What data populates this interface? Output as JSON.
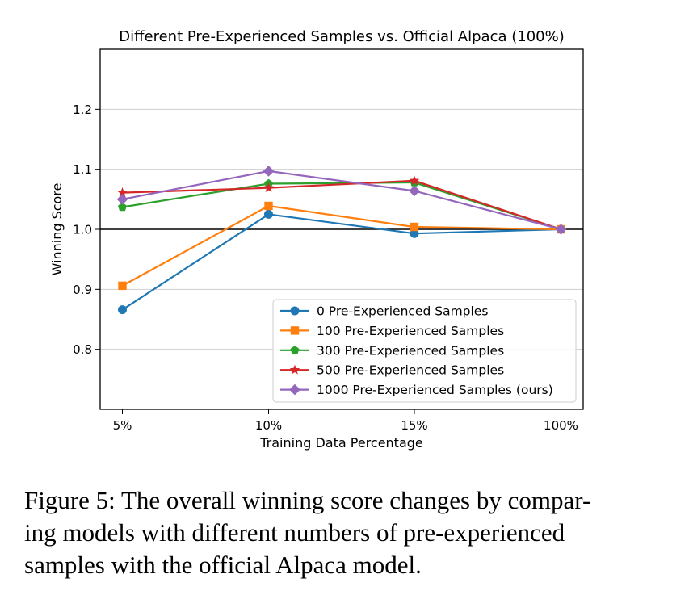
{
  "chart_data": {
    "type": "line",
    "title": "Different Pre-Experienced Samples vs. Official Alpaca (100%)",
    "xlabel": "Training Data Percentage",
    "ylabel": "Winning Score",
    "categories": [
      "5%",
      "10%",
      "15%",
      "100%"
    ],
    "ylim": [
      0.7,
      1.3
    ],
    "yticks": [
      0.8,
      0.9,
      1.0,
      1.1,
      1.2
    ],
    "ytick_labels": [
      "0.8",
      "0.9",
      "1.0",
      "1.1",
      "1.2"
    ],
    "grid": true,
    "reference_line": 1.0,
    "legend_position": "lower-right",
    "series": [
      {
        "name": "0 Pre-Experienced Samples",
        "values": [
          0.866,
          1.025,
          0.993,
          1.0
        ],
        "color": "#1f77b4",
        "marker": "circle"
      },
      {
        "name": "100 Pre-Experienced Samples",
        "values": [
          0.906,
          1.039,
          1.004,
          1.0
        ],
        "color": "#ff7f0e",
        "marker": "square"
      },
      {
        "name": "300 Pre-Experienced Samples",
        "values": [
          1.037,
          1.076,
          1.078,
          1.0
        ],
        "color": "#2ca02c",
        "marker": "pentagon"
      },
      {
        "name": "500 Pre-Experienced Samples",
        "values": [
          1.061,
          1.069,
          1.081,
          1.0
        ],
        "color": "#d62728",
        "marker": "star"
      },
      {
        "name": "1000 Pre-Experienced Samples (ours)",
        "values": [
          1.05,
          1.097,
          1.064,
          1.0
        ],
        "color": "#9467bd",
        "marker": "diamond"
      }
    ]
  },
  "caption": {
    "lines": [
      "Figure 5: The overall winning score changes by compar-",
      "ing models with different numbers of pre-experienced",
      "samples with the official Alpaca model."
    ]
  }
}
